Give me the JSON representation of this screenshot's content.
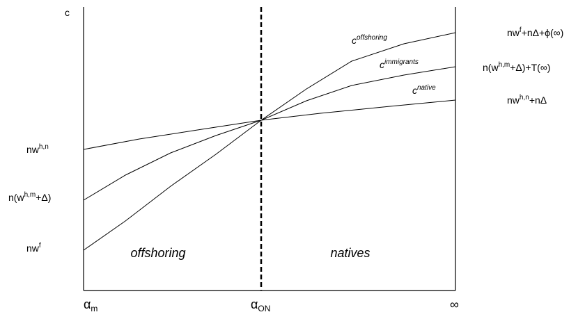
{
  "axis_label": "c",
  "left_labels": [
    {
      "base": "nw",
      "sup": "h,n"
    },
    {
      "base": "n(w",
      "sup": "h,m",
      "after": "+Δ)"
    },
    {
      "base": "nw",
      "sup": "f"
    }
  ],
  "right_labels": [
    {
      "base": "nw",
      "sup": "f",
      "after": "+nΔ+ϕ(∞)"
    },
    {
      "base": "n(w",
      "sup": "h,m",
      "after": "+Δ)+T(∞)"
    },
    {
      "base": "nw",
      "sup": "h,n",
      "after": "+nΔ"
    }
  ],
  "curve_labels": [
    {
      "base": "c",
      "sup": "offshoring"
    },
    {
      "base": "c",
      "sup": "immigrants"
    },
    {
      "base": "c",
      "sup": "native"
    }
  ],
  "regions": [
    "offshoring",
    "natives"
  ],
  "bottom_labels": [
    {
      "base": "α",
      "sub": "m"
    },
    {
      "base": "α",
      "sub": "ON"
    },
    {
      "base": "∞"
    }
  ]
}
